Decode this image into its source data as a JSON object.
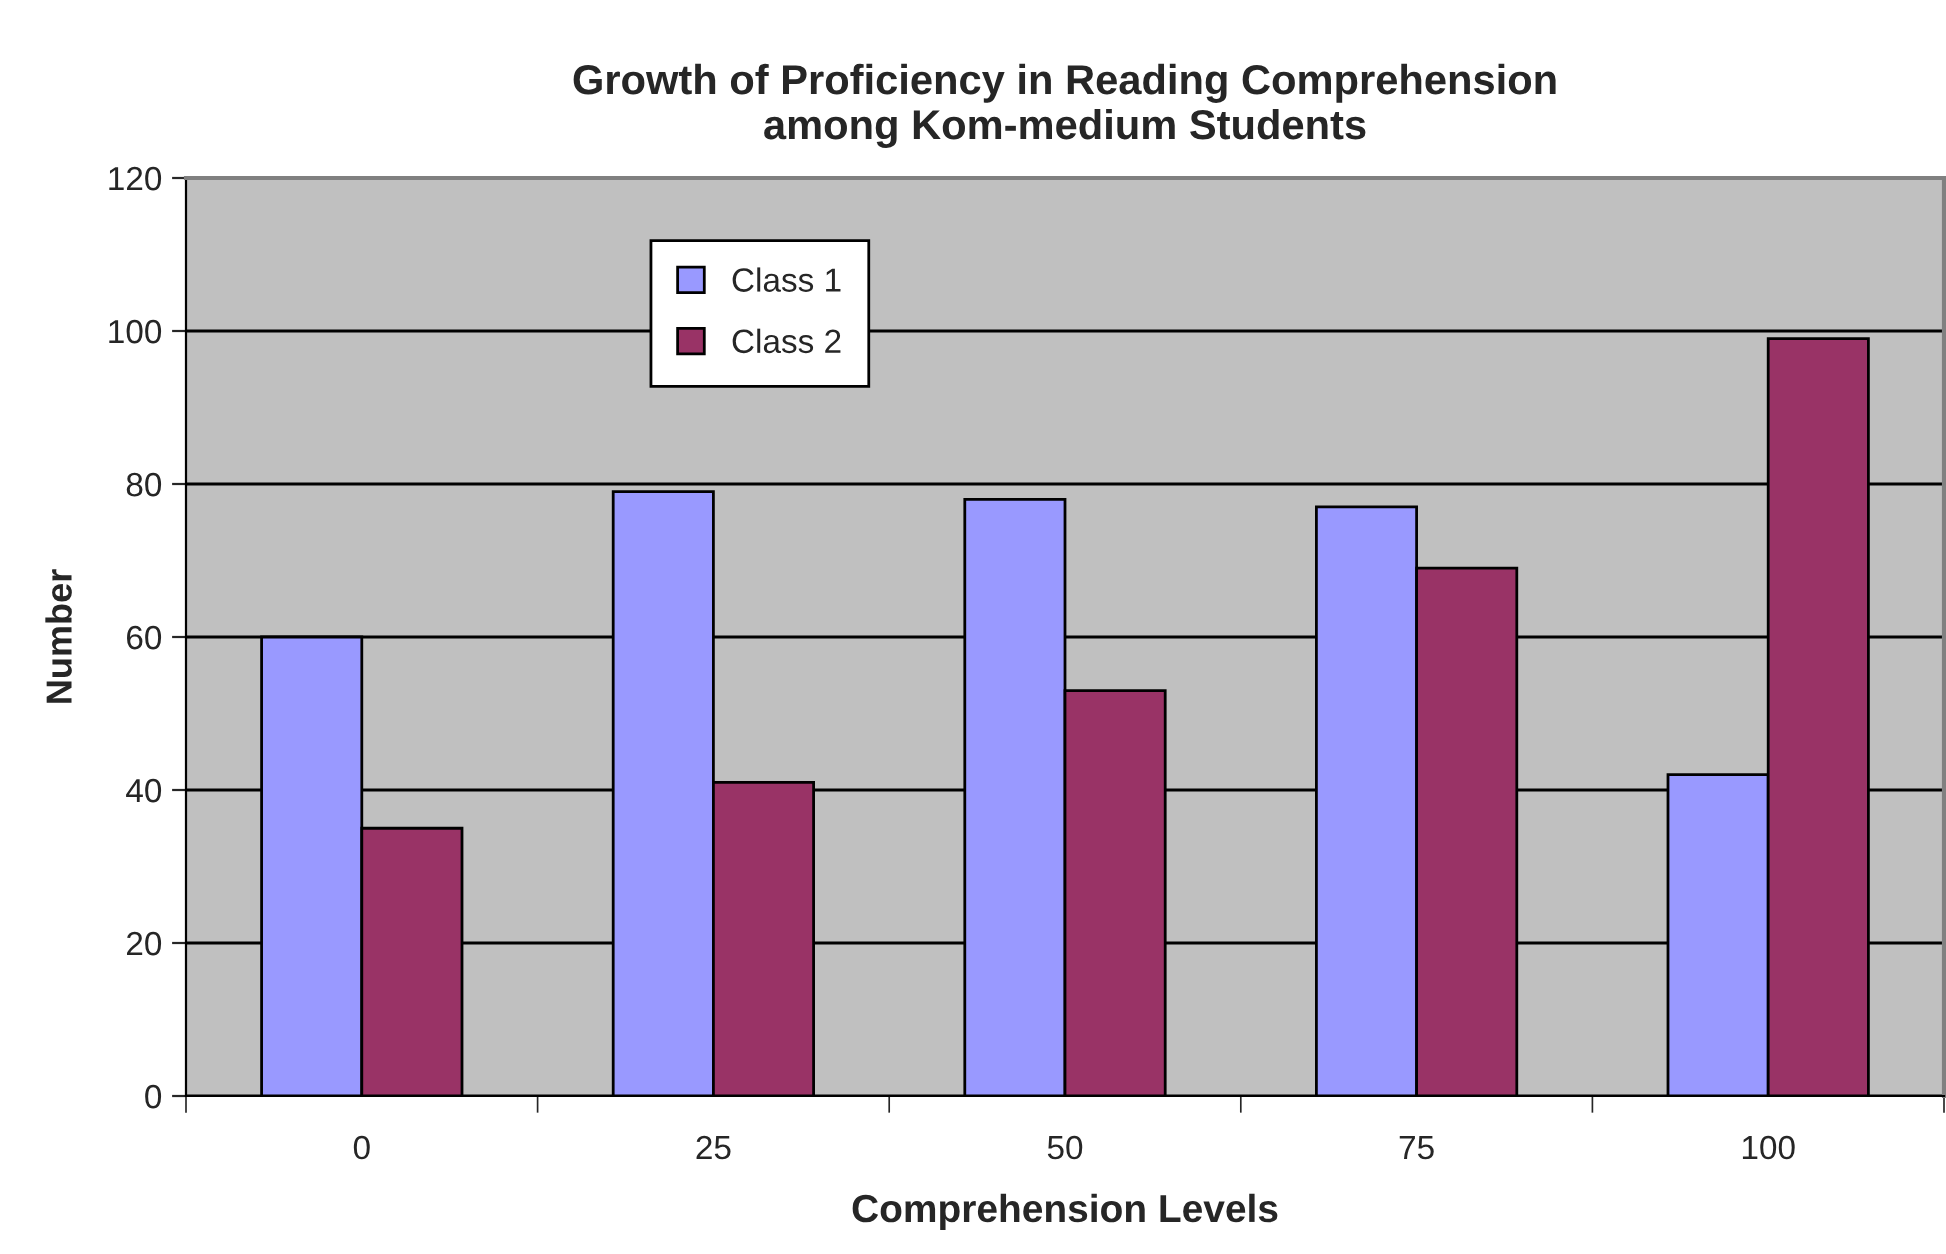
{
  "chart_data": {
    "type": "bar",
    "title": "Growth of Proficiency in Reading Comprehension\namong Kom-medium Students",
    "xlabel": "Comprehension Levels",
    "ylabel": "Number",
    "categories": [
      "0",
      "25",
      "50",
      "75",
      "100"
    ],
    "series": [
      {
        "name": "Class 1",
        "color": "#9999ff",
        "values": [
          60,
          79,
          78,
          77,
          42
        ]
      },
      {
        "name": "Class 2",
        "color": "#993366",
        "values": [
          35,
          41,
          53,
          69,
          99
        ]
      }
    ],
    "ylim": [
      0,
      120
    ],
    "yticks": [
      0,
      20,
      40,
      60,
      80,
      100,
      120
    ],
    "grid": "y",
    "legend": "top left"
  }
}
